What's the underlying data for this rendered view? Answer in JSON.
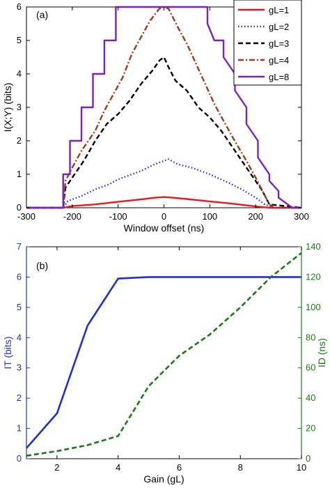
{
  "chart_data": [
    {
      "type": "line",
      "panel_label": "(a)",
      "xlabel": "Window offset (ns)",
      "ylabel": "I(X;Y) (bits)",
      "xlim": [
        -300,
        300
      ],
      "ylim": [
        0,
        6
      ],
      "xticks": [
        -300,
        -200,
        -100,
        0,
        100,
        200,
        300
      ],
      "yticks": [
        0,
        1,
        2,
        3,
        4,
        5,
        6
      ],
      "grid": false,
      "legend_position": "top-right",
      "series": [
        {
          "name": "gL=1",
          "color": "#e8191e",
          "style": "solid",
          "x": [
            -300,
            -220,
            -200,
            -150,
            -100,
            -50,
            -20,
            0,
            20,
            50,
            100,
            150,
            200,
            230,
            300
          ],
          "y": [
            0,
            0,
            0.05,
            0.1,
            0.18,
            0.25,
            0.3,
            0.32,
            0.3,
            0.26,
            0.19,
            0.12,
            0.04,
            0,
            0
          ]
        },
        {
          "name": "gL=2",
          "color": "#1d2fd6",
          "style": "dotted",
          "x": [
            -300,
            -220,
            -210,
            -180,
            -150,
            -120,
            -100,
            -80,
            -50,
            -20,
            0,
            10,
            30,
            60,
            100,
            140,
            170,
            200,
            220,
            240,
            300
          ],
          "y": [
            0,
            0,
            0.2,
            0.35,
            0.55,
            0.7,
            0.85,
            0.95,
            1.1,
            1.3,
            1.4,
            1.45,
            1.3,
            1.2,
            1.0,
            0.75,
            0.55,
            0.3,
            0.1,
            0,
            0
          ]
        },
        {
          "name": "gL=3",
          "color": "#000000",
          "style": "dashed",
          "x": [
            -300,
            -220,
            -215,
            -200,
            -175,
            -150,
            -125,
            -100,
            -75,
            -50,
            -25,
            -10,
            0,
            10,
            25,
            50,
            75,
            100,
            125,
            150,
            175,
            200,
            215,
            230,
            300
          ],
          "y": [
            0,
            0,
            0.6,
            0.9,
            1.4,
            2.0,
            2.5,
            2.8,
            3.2,
            3.7,
            4.1,
            4.4,
            4.5,
            4.2,
            3.8,
            3.5,
            3.0,
            2.7,
            2.3,
            1.8,
            1.3,
            0.8,
            0.5,
            0.1,
            0
          ]
        },
        {
          "name": "gL=4",
          "color": "#a23a12",
          "style": "dashdot",
          "x": [
            -300,
            -220,
            -215,
            -200,
            -180,
            -150,
            -130,
            -110,
            -90,
            -70,
            -50,
            -30,
            -10,
            0,
            10,
            30,
            50,
            70,
            90,
            110,
            130,
            150,
            180,
            200,
            215,
            230,
            240,
            300
          ],
          "y": [
            0,
            0,
            0.8,
            1.2,
            1.7,
            2.3,
            2.9,
            3.4,
            3.9,
            4.6,
            5.1,
            5.6,
            5.95,
            6.0,
            5.95,
            5.4,
            4.9,
            4.3,
            3.7,
            3.1,
            2.6,
            2.1,
            1.4,
            0.9,
            0.5,
            0.1,
            0,
            0
          ]
        },
        {
          "name": "gL=8",
          "color": "#7b1fc9",
          "style": "solid",
          "x": [
            -300,
            -220,
            -220,
            -205,
            -205,
            -180,
            -180,
            -155,
            -155,
            -130,
            -130,
            -105,
            -105,
            -80,
            -80,
            -55,
            -55,
            -35,
            -35,
            95,
            95,
            110,
            110,
            130,
            130,
            155,
            155,
            180,
            180,
            205,
            205,
            230,
            230,
            250,
            250,
            270,
            280,
            300
          ],
          "y": [
            0,
            0,
            1,
            1,
            2,
            2,
            3,
            3,
            4,
            4,
            5,
            5,
            6,
            6,
            6,
            6,
            6,
            6,
            6,
            6,
            5.5,
            5.0,
            5,
            5,
            4.5,
            4,
            3.5,
            3,
            2.5,
            2,
            1.5,
            1,
            0.8,
            0.5,
            0.3,
            0.1,
            0,
            0
          ]
        }
      ]
    },
    {
      "type": "line",
      "panel_label": "(b)",
      "xlabel": "Gain (gL)",
      "ylabel_left": "IT (bits)",
      "ylabel_right": "ID (ns)",
      "xlim": [
        1,
        10
      ],
      "ylim_left": [
        0,
        7
      ],
      "ylim_right": [
        0,
        140
      ],
      "xticks": [
        2,
        4,
        6,
        8,
        10
      ],
      "yticks_left": [
        0,
        1,
        2,
        3,
        4,
        5,
        6,
        7
      ],
      "yticks_right": [
        0,
        20,
        40,
        60,
        80,
        100,
        120,
        140
      ],
      "grid": false,
      "series": [
        {
          "name": "IT (bits)",
          "axis": "left",
          "color": "#1d2fd6",
          "style": "solid",
          "x": [
            1,
            2,
            3,
            4,
            5,
            6,
            7,
            8,
            9,
            10
          ],
          "y": [
            0.35,
            1.5,
            4.4,
            5.95,
            6.0,
            6.0,
            6.0,
            6.0,
            6.0,
            6.0
          ]
        },
        {
          "name": "ID (ns)",
          "axis": "right",
          "color": "#1a7a14",
          "style": "dashed",
          "x": [
            1,
            2,
            3,
            4,
            5,
            6,
            7,
            8,
            9,
            10
          ],
          "y": [
            2,
            5,
            9,
            15,
            48,
            68,
            82,
            100,
            120,
            136
          ]
        }
      ]
    }
  ]
}
